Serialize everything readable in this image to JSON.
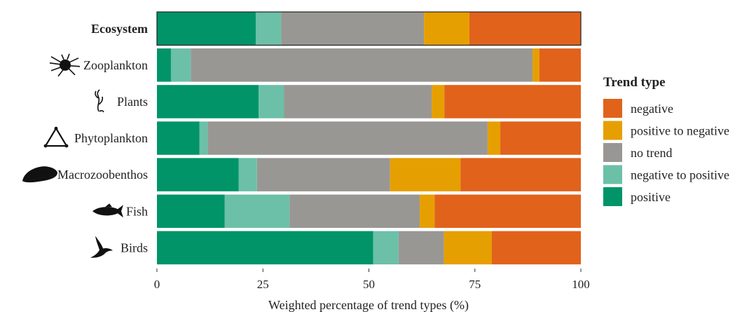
{
  "chart_data": {
    "type": "bar",
    "orientation": "horizontal",
    "stacked": true,
    "title": "",
    "xlabel": "Weighted percentage of trend types (%)",
    "ylabel": "",
    "xlim": [
      0,
      100
    ],
    "xticks": [
      "0",
      "25",
      "50",
      "75",
      "100"
    ],
    "grid": false,
    "legend_position": "right",
    "legend_title": "Trend type",
    "legend": [
      {
        "label": "negative",
        "color": "#E1621B"
      },
      {
        "label": "positive to negative",
        "color": "#E69F00"
      },
      {
        "label": "no trend",
        "color": "#999793"
      },
      {
        "label": "negative to positive",
        "color": "#6CC0A7"
      },
      {
        "label": "positive",
        "color": "#009468"
      }
    ],
    "categories": [
      {
        "label": "Ecosystem",
        "icon": "none",
        "emphasis": true
      },
      {
        "label": "Zooplankton",
        "icon": "zooplankton-icon"
      },
      {
        "label": "Plants",
        "icon": "plant-icon"
      },
      {
        "label": "Phytoplankton",
        "icon": "phytoplankton-icon"
      },
      {
        "label": "Macrozoobenthos",
        "icon": "mussel-icon"
      },
      {
        "label": "Fish",
        "icon": "fish-icon"
      },
      {
        "label": "Birds",
        "icon": "bird-icon"
      }
    ],
    "series": [
      {
        "name": "positive",
        "color": "#009468",
        "values": [
          23.3,
          3.3,
          24,
          10,
          19.3,
          16,
          51
        ]
      },
      {
        "name": "negative to positive",
        "color": "#6CC0A7",
        "values": [
          6,
          4.7,
          6,
          2,
          4.3,
          15.3,
          6
        ]
      },
      {
        "name": "no trend",
        "color": "#999793",
        "values": [
          33.7,
          80.6,
          34.8,
          66,
          31.4,
          30.7,
          10.7
        ]
      },
      {
        "name": "positive to negative",
        "color": "#E69F00",
        "values": [
          10.7,
          1.6,
          3,
          3,
          16.6,
          3.5,
          11.3
        ]
      },
      {
        "name": "negative",
        "color": "#E1621B",
        "values": [
          26.3,
          9.8,
          32.2,
          19,
          28.4,
          34.5,
          21
        ]
      }
    ]
  }
}
